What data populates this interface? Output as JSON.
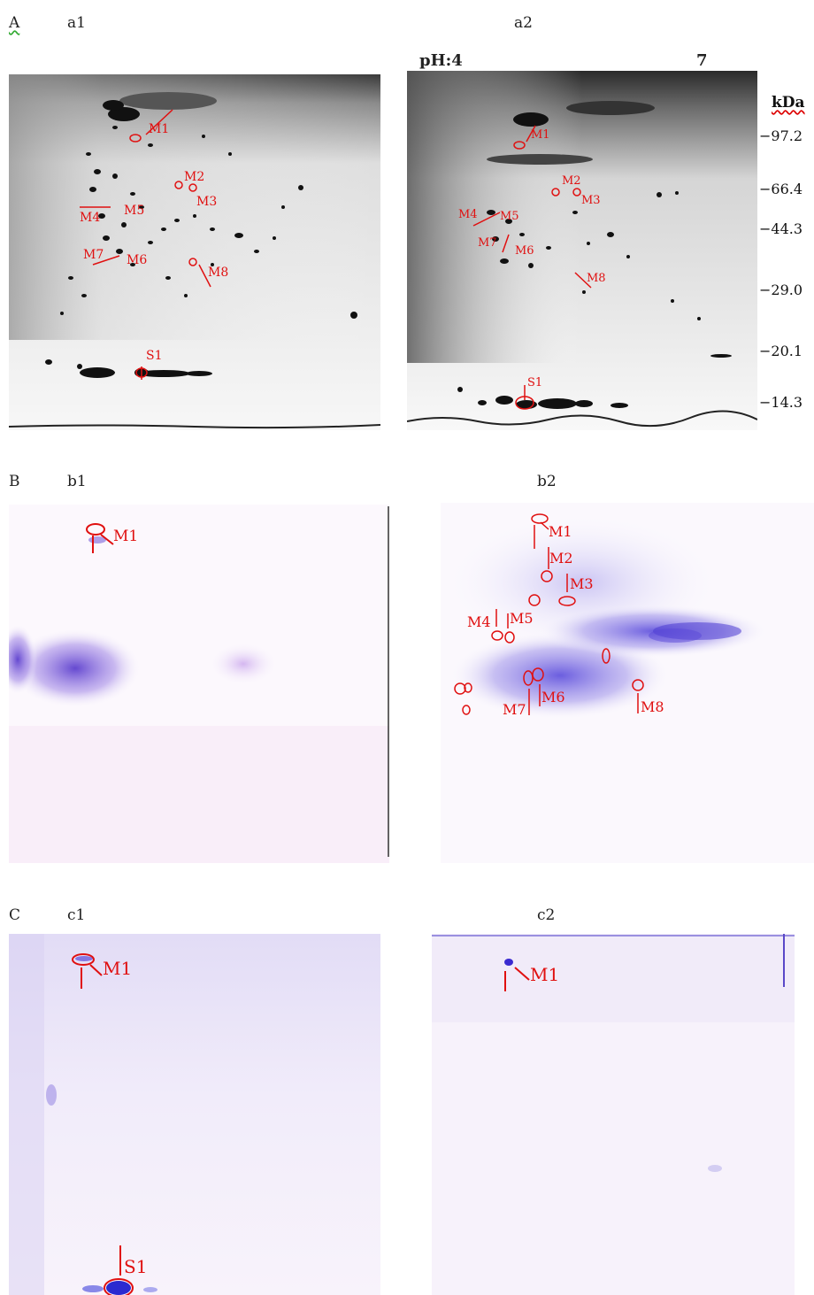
{
  "sections": {
    "A": "A",
    "B": "B",
    "C": "C"
  },
  "panels": {
    "a1": "a1",
    "a2": "a2",
    "b1": "b1",
    "b2": "b2",
    "c1": "c1",
    "c2": "c2"
  },
  "ph_axis": {
    "left": "pH:4",
    "right": "7"
  },
  "mw_axis": {
    "unit": "kDa",
    "ticks": [
      "97.2",
      "66.4",
      "44.3",
      "29.0",
      "20.1",
      "14.3"
    ]
  },
  "spot_labels": [
    "M1",
    "M2",
    "M3",
    "M4",
    "M5",
    "M6",
    "M7",
    "M8",
    "S1"
  ],
  "colors": {
    "annotation": "#e01010",
    "stain_blue": "#3a2ad0",
    "gel_dark": "#111111"
  }
}
